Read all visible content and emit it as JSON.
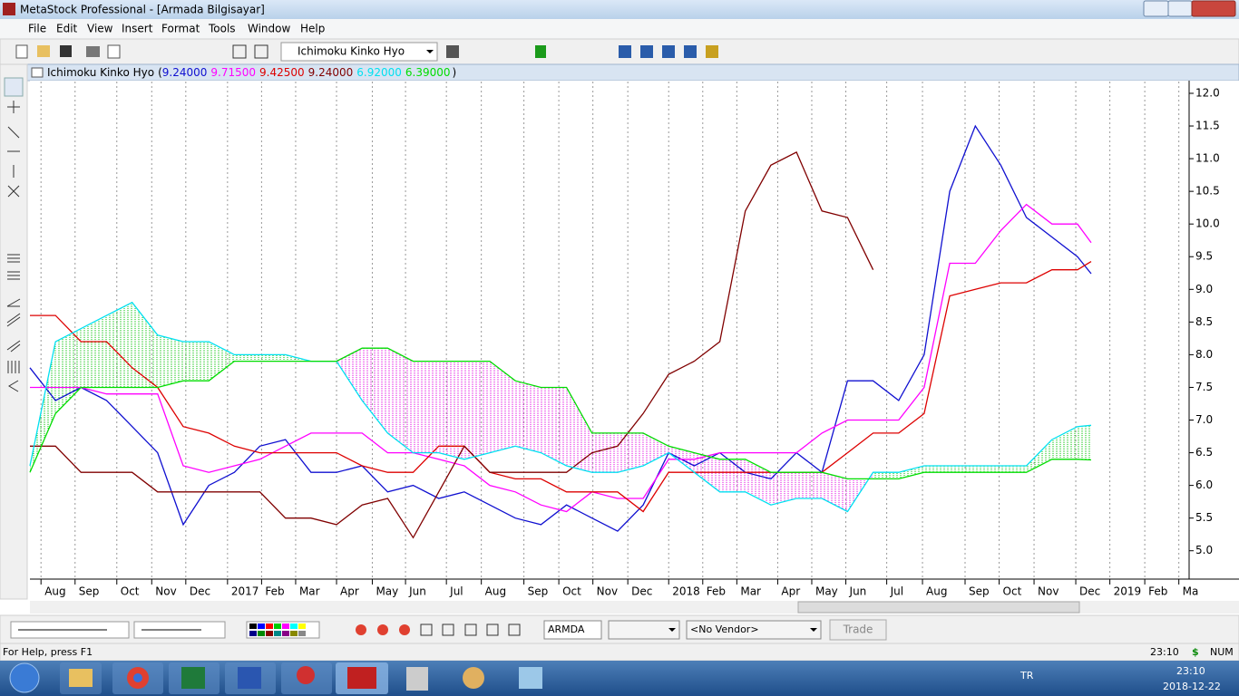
{
  "window": {
    "title": "MetaStock Professional - [Armada Bilgisayar]",
    "menu": [
      "File",
      "Edit",
      "View",
      "Insert",
      "Format",
      "Tools",
      "Window",
      "Help"
    ],
    "toolbar_indicator": "Ichimoku Kinko Hyo"
  },
  "chart_data": {
    "type": "line",
    "title": "Ichimoku Kinko Hyo",
    "title_brackets": [
      "(",
      ")"
    ],
    "x": [
      0,
      3,
      6,
      9,
      12,
      15,
      18,
      21,
      24,
      27,
      30,
      33,
      36,
      39,
      42,
      45,
      48,
      51,
      54,
      57,
      60,
      63,
      66,
      69,
      72,
      75,
      78,
      81,
      84,
      87,
      90,
      93,
      96,
      99,
      102,
      105,
      108,
      111,
      114,
      117,
      120,
      123
    ],
    "xlim": [
      0,
      136
    ],
    "xticks": [
      {
        "value": 1.3,
        "label": "Aug"
      },
      {
        "value": 5.3,
        "label": "Sep"
      },
      {
        "value": 10.2,
        "label": "Oct"
      },
      {
        "value": 14.3,
        "label": "Nov"
      },
      {
        "value": 18.3,
        "label": "Dec"
      },
      {
        "value": 23.2,
        "label": "2017"
      },
      {
        "value": 27.2,
        "label": "Feb"
      },
      {
        "value": 31.2,
        "label": "Mar"
      },
      {
        "value": 36.0,
        "label": "Apr"
      },
      {
        "value": 40.2,
        "label": "May"
      },
      {
        "value": 44.1,
        "label": "Jun"
      },
      {
        "value": 48.9,
        "label": "Jul"
      },
      {
        "value": 53.0,
        "label": "Aug"
      },
      {
        "value": 58.0,
        "label": "Sep"
      },
      {
        "value": 62.1,
        "label": "Oct"
      },
      {
        "value": 66.1,
        "label": "Nov"
      },
      {
        "value": 70.2,
        "label": "Dec"
      },
      {
        "value": 75.0,
        "label": "2018"
      },
      {
        "value": 79.0,
        "label": "Feb"
      },
      {
        "value": 83.0,
        "label": "Mar"
      },
      {
        "value": 87.8,
        "label": "Apr"
      },
      {
        "value": 91.8,
        "label": "May"
      },
      {
        "value": 95.8,
        "label": "Jun"
      },
      {
        "value": 100.6,
        "label": "Jul"
      },
      {
        "value": 104.8,
        "label": "Aug"
      },
      {
        "value": 109.8,
        "label": "Sep"
      },
      {
        "value": 113.8,
        "label": "Oct"
      },
      {
        "value": 117.9,
        "label": "Nov"
      },
      {
        "value": 122.8,
        "label": "Dec"
      },
      {
        "value": 126.8,
        "label": "2019"
      },
      {
        "value": 130.9,
        "label": "Feb"
      },
      {
        "value": 134.9,
        "label": "Ma"
      }
    ],
    "ylim": [
      4.58,
      12.18
    ],
    "yticks": [
      {
        "value": 5,
        "label": "5.0"
      },
      {
        "value": 5.5,
        "label": "5.5"
      },
      {
        "value": 6,
        "label": "6.0"
      },
      {
        "value": 6.5,
        "label": "6.5"
      },
      {
        "value": 7,
        "label": "7.0"
      },
      {
        "value": 7.5,
        "label": "7.5"
      },
      {
        "value": 8,
        "label": "8.0"
      },
      {
        "value": 8.5,
        "label": "8.5"
      },
      {
        "value": 9,
        "label": "9.0"
      },
      {
        "value": 9.5,
        "label": "9.5"
      },
      {
        "value": 10,
        "label": "10.0"
      },
      {
        "value": 10.5,
        "label": "10.5"
      },
      {
        "value": 11,
        "label": "11.0"
      },
      {
        "value": 11.5,
        "label": "11.5"
      },
      {
        "value": 12,
        "label": "12.0"
      }
    ],
    "grid": true,
    "series": [
      {
        "color": "#1010d0",
        "last": {
          "x": 124.6,
          "value": 9.24,
          "label": "9.24000"
        },
        "values": [
          7.8,
          7.3,
          7.5,
          7.3,
          6.9,
          6.5,
          5.4,
          6.0,
          6.2,
          6.6,
          6.7,
          6.2,
          6.2,
          6.3,
          5.9,
          6.0,
          5.8,
          5.9,
          5.7,
          5.5,
          5.4,
          5.7,
          5.5,
          5.3,
          5.7,
          6.5,
          6.3,
          6.5,
          6.2,
          6.1,
          6.5,
          6.2,
          7.6,
          7.6,
          7.3,
          8.0,
          10.5,
          11.5,
          10.9,
          10.1,
          9.8,
          9.5
        ]
      },
      {
        "color": "#ff00ff",
        "last": {
          "x": 124.6,
          "value": 9.715,
          "label": "9.71500"
        },
        "values": [
          7.5,
          7.5,
          7.5,
          7.4,
          7.4,
          7.4,
          6.3,
          6.2,
          6.3,
          6.4,
          6.6,
          6.8,
          6.8,
          6.8,
          6.5,
          6.5,
          6.4,
          6.3,
          6.0,
          5.9,
          5.7,
          5.6,
          5.9,
          5.8,
          5.8,
          6.4,
          6.4,
          6.5,
          6.5,
          6.5,
          6.5,
          6.8,
          7.0,
          7.0,
          7.0,
          7.5,
          9.4,
          9.4,
          9.9,
          10.3,
          10.0,
          10.0
        ]
      },
      {
        "color": "#dd0000",
        "last": {
          "x": 124.6,
          "value": 9.425,
          "label": "9.42500"
        },
        "values": [
          8.6,
          8.6,
          8.2,
          8.2,
          7.8,
          7.5,
          6.9,
          6.8,
          6.6,
          6.5,
          6.5,
          6.5,
          6.5,
          6.3,
          6.2,
          6.2,
          6.6,
          6.6,
          6.2,
          6.1,
          6.1,
          5.9,
          5.9,
          5.9,
          5.6,
          6.2,
          6.2,
          6.2,
          6.2,
          6.2,
          6.2,
          6.2,
          6.5,
          6.8,
          6.8,
          7.1,
          8.9,
          9.0,
          9.1,
          9.1,
          9.3,
          9.3
        ]
      },
      {
        "color": "#800000",
        "last": {
          "x": 99.8,
          "value": 9.24,
          "label": "9.24000"
        },
        "values": [
          6.6,
          6.6,
          6.2,
          6.2,
          6.2,
          5.9,
          5.9,
          5.9,
          5.9,
          5.9,
          5.5,
          5.5,
          5.4,
          5.7,
          5.8,
          5.2,
          5.9,
          6.6,
          6.2,
          6.2,
          6.2,
          6.2,
          6.5,
          6.6,
          7.1,
          7.7,
          7.9,
          8.2,
          10.2,
          10.9,
          11.1,
          10.2,
          10.1,
          9.3,
          null,
          null,
          null,
          null,
          null,
          null,
          null,
          null
        ]
      },
      {
        "color": "#00e0f0",
        "last": {
          "x": 124.6,
          "value": 6.92,
          "label": "6.92000"
        },
        "values": [
          6.3,
          8.2,
          8.4,
          8.6,
          8.8,
          8.3,
          8.2,
          8.2,
          8.0,
          8.0,
          8.0,
          7.9,
          7.9,
          7.3,
          6.8,
          6.5,
          6.5,
          6.4,
          6.5,
          6.6,
          6.5,
          6.3,
          6.2,
          6.2,
          6.3,
          6.5,
          6.2,
          5.9,
          5.9,
          5.7,
          5.8,
          5.8,
          5.6,
          6.2,
          6.2,
          6.3,
          6.3,
          6.3,
          6.3,
          6.3,
          6.7,
          6.9
        ]
      },
      {
        "color": "#00dd00",
        "last": {
          "x": 124.6,
          "value": 6.39,
          "label": "6.39000"
        },
        "values": [
          6.2,
          7.1,
          7.5,
          7.5,
          7.5,
          7.5,
          7.6,
          7.6,
          7.9,
          7.9,
          7.9,
          7.9,
          7.9,
          8.1,
          8.1,
          7.9,
          7.9,
          7.9,
          7.9,
          7.6,
          7.5,
          7.5,
          6.8,
          6.8,
          6.8,
          6.6,
          6.5,
          6.4,
          6.4,
          6.2,
          6.2,
          6.2,
          6.1,
          6.1,
          6.1,
          6.2,
          6.2,
          6.2,
          6.2,
          6.2,
          6.4,
          6.4
        ]
      }
    ]
  },
  "bottom_toolbar": {
    "symbol": "ARMDA",
    "vendor": "<No Vendor>",
    "button": "Trade"
  },
  "status_bar": {
    "help": "For Help, press F1",
    "time": "23:10",
    "currency": "$",
    "num": "NUM"
  },
  "taskbar": {
    "language": "TR",
    "time": "23:10",
    "date": "2018-12-22"
  }
}
